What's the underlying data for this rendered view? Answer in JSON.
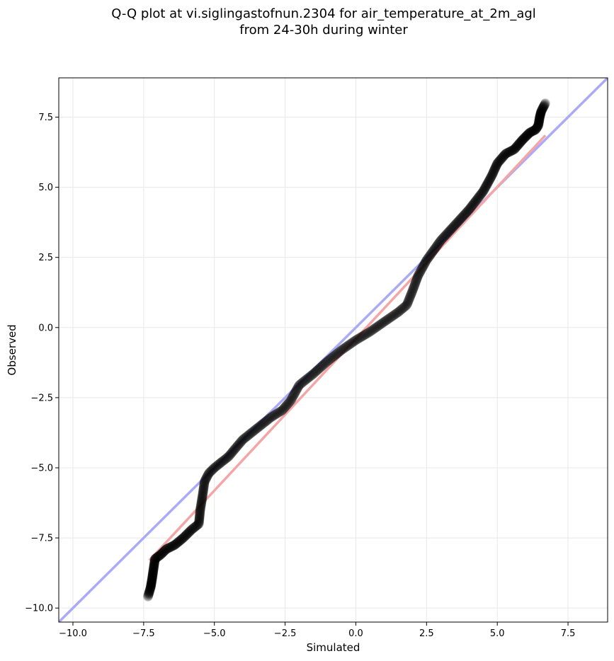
{
  "chart_data": {
    "type": "scatter",
    "title": "Q-Q plot at vi.siglingastofnun.2304 for air_temperature_at_2m_agl\nfrom 24-30h during winter",
    "xlabel": "Simulated",
    "ylabel": "Observed",
    "xlim": [
      -10.5,
      8.9
    ],
    "ylim": [
      -10.5,
      8.9
    ],
    "x_ticks": [
      -10.0,
      -7.5,
      -5.0,
      -2.5,
      0.0,
      2.5,
      5.0,
      7.5
    ],
    "y_ticks": [
      -10.0,
      -7.5,
      -5.0,
      -2.5,
      0.0,
      2.5,
      5.0,
      7.5
    ],
    "x_tick_labels": [
      "−10.0",
      "−7.5",
      "−5.0",
      "−2.5",
      "0.0",
      "2.5",
      "5.0",
      "7.5"
    ],
    "y_tick_labels": [
      "−10.0",
      "−7.5",
      "−5.0",
      "−2.5",
      "0.0",
      "2.5",
      "5.0",
      "7.5"
    ],
    "grid": true,
    "legend": false,
    "reference_line": {
      "x": [
        -10.5,
        8.9
      ],
      "y": [
        -10.5,
        8.9
      ],
      "color": "#aaaaf7"
    },
    "fit_line": {
      "x": [
        -7.3,
        6.7
      ],
      "y": [
        -8.3,
        6.85
      ],
      "color": "#f4a6a6"
    },
    "marker_color": "#000000",
    "quantile_anchors": [
      [
        -7.35,
        -9.6
      ],
      [
        -7.25,
        -9.25
      ],
      [
        -7.2,
        -8.95
      ],
      [
        -7.1,
        -8.25
      ],
      [
        -6.9,
        -8.1
      ],
      [
        -6.7,
        -7.9
      ],
      [
        -6.4,
        -7.75
      ],
      [
        -6.1,
        -7.5
      ],
      [
        -5.8,
        -7.2
      ],
      [
        -5.55,
        -7.0
      ],
      [
        -5.5,
        -6.5
      ],
      [
        -5.42,
        -6.0
      ],
      [
        -5.35,
        -5.5
      ],
      [
        -5.2,
        -5.2
      ],
      [
        -5.0,
        -5.0
      ],
      [
        -4.5,
        -4.6
      ],
      [
        -4.0,
        -4.0
      ],
      [
        -3.5,
        -3.6
      ],
      [
        -3.0,
        -3.2
      ],
      [
        -2.6,
        -2.95
      ],
      [
        -2.3,
        -2.6
      ],
      [
        -2.0,
        -2.05
      ],
      [
        -1.5,
        -1.65
      ],
      [
        -1.0,
        -1.2
      ],
      [
        -0.5,
        -0.8
      ],
      [
        0.0,
        -0.45
      ],
      [
        0.5,
        -0.15
      ],
      [
        1.0,
        0.2
      ],
      [
        1.5,
        0.55
      ],
      [
        1.8,
        0.8
      ],
      [
        2.0,
        1.3
      ],
      [
        2.2,
        1.85
      ],
      [
        2.5,
        2.4
      ],
      [
        3.0,
        3.1
      ],
      [
        3.5,
        3.65
      ],
      [
        4.0,
        4.2
      ],
      [
        4.5,
        4.85
      ],
      [
        4.8,
        5.4
      ],
      [
        5.0,
        5.85
      ],
      [
        5.3,
        6.2
      ],
      [
        5.6,
        6.35
      ],
      [
        5.9,
        6.7
      ],
      [
        6.15,
        6.95
      ],
      [
        6.35,
        7.05
      ],
      [
        6.45,
        7.2
      ],
      [
        6.5,
        7.5
      ],
      [
        6.55,
        7.7
      ],
      [
        6.7,
        8.0
      ]
    ]
  }
}
